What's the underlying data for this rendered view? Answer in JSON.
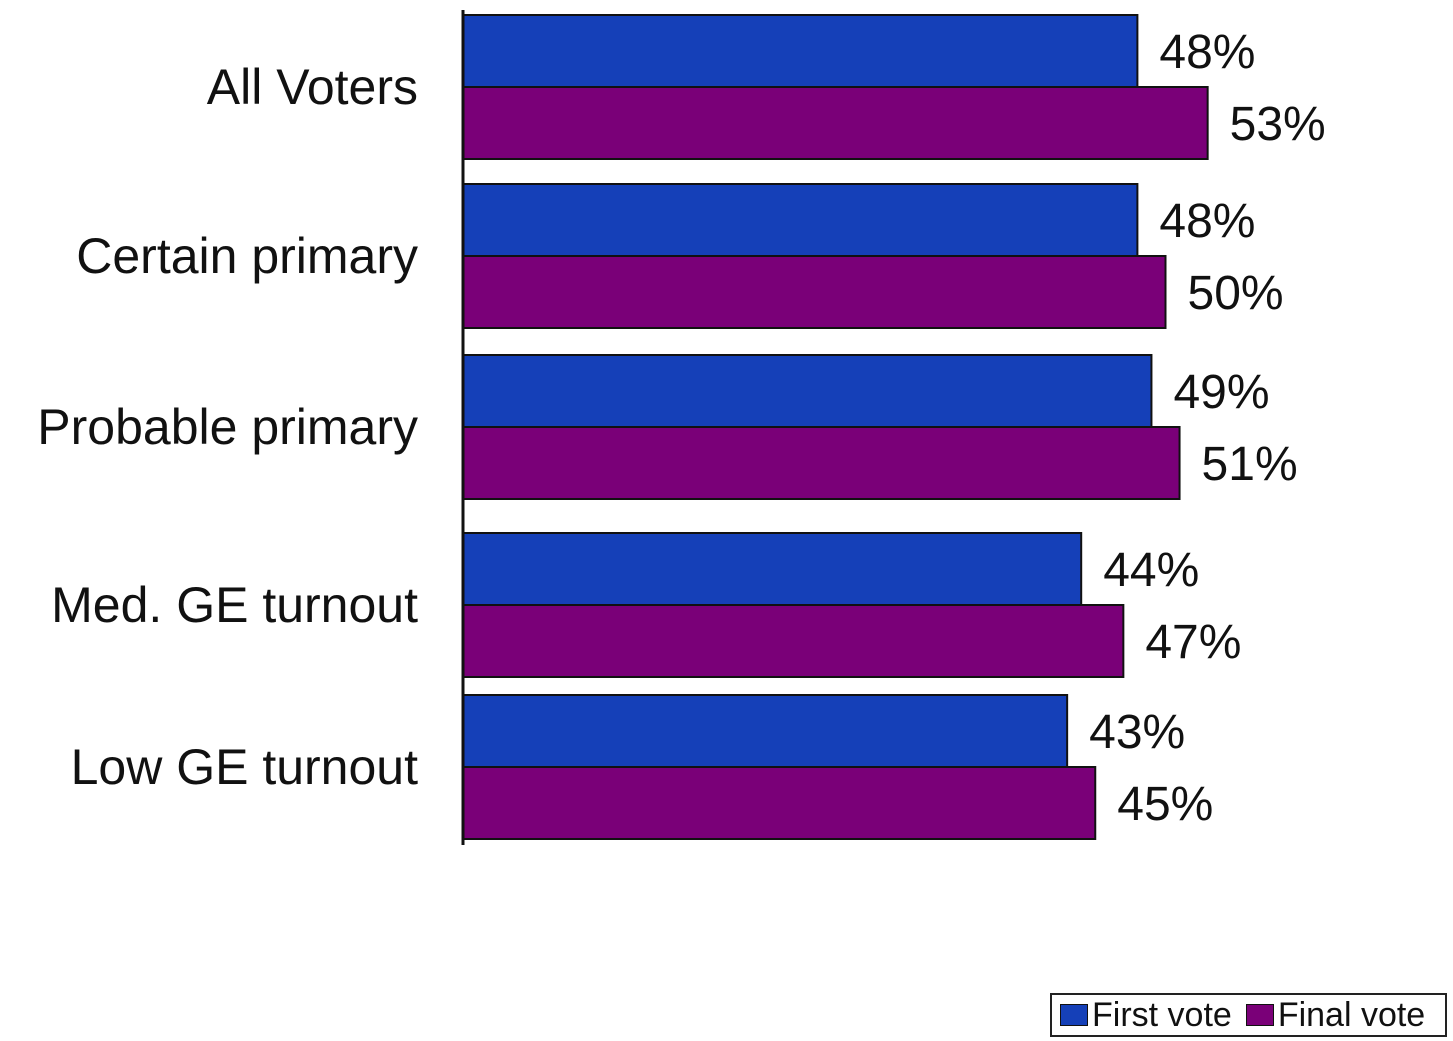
{
  "chart_data": {
    "type": "bar",
    "orientation": "horizontal",
    "categories": [
      "All Voters",
      "Certain primary",
      "Probable primary",
      "Med. GE turnout",
      "Low GE turnout"
    ],
    "series": [
      {
        "name": "First vote",
        "color": "#1540B8",
        "values": [
          48,
          48,
          49,
          44,
          43
        ],
        "labels": [
          "48%",
          "48%",
          "49%",
          "44%",
          "43%"
        ]
      },
      {
        "name": "Final vote",
        "color": "#7A0078",
        "values": [
          53,
          50,
          51,
          47,
          45
        ],
        "labels": [
          "53%",
          "50%",
          "51%",
          "47%",
          "45%"
        ]
      }
    ],
    "grid": false,
    "legend_position": "bottom-right"
  }
}
